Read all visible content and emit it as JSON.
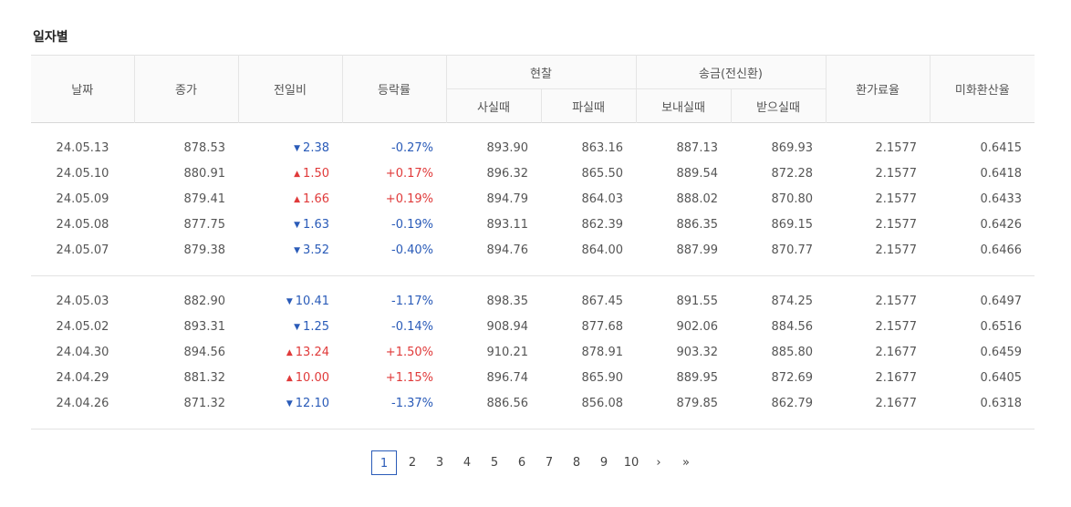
{
  "section_title": "일자별",
  "headers": {
    "date": "날짜",
    "close": "종가",
    "change": "전일비",
    "rate": "등락률",
    "cash": "현찰",
    "cash_buy": "사실때",
    "cash_sell": "파실때",
    "remit": "송금(전신환)",
    "remit_send": "보내실때",
    "remit_receive": "받으실때",
    "exchange_commission": "환가료율",
    "usd_conversion": "미화환산율"
  },
  "rows": [
    {
      "date": "24.05.13",
      "close": "878.53",
      "dir": "down",
      "arrow": "▼",
      "change": "2.38",
      "rate": "-0.27%",
      "cash_buy": "893.90",
      "cash_sell": "863.16",
      "send": "887.13",
      "receive": "869.93",
      "commission": "2.1577",
      "usd": "0.6415"
    },
    {
      "date": "24.05.10",
      "close": "880.91",
      "dir": "up",
      "arrow": "▲",
      "change": "1.50",
      "rate": "+0.17%",
      "cash_buy": "896.32",
      "cash_sell": "865.50",
      "send": "889.54",
      "receive": "872.28",
      "commission": "2.1577",
      "usd": "0.6418"
    },
    {
      "date": "24.05.09",
      "close": "879.41",
      "dir": "up",
      "arrow": "▲",
      "change": "1.66",
      "rate": "+0.19%",
      "cash_buy": "894.79",
      "cash_sell": "864.03",
      "send": "888.02",
      "receive": "870.80",
      "commission": "2.1577",
      "usd": "0.6433"
    },
    {
      "date": "24.05.08",
      "close": "877.75",
      "dir": "down",
      "arrow": "▼",
      "change": "1.63",
      "rate": "-0.19%",
      "cash_buy": "893.11",
      "cash_sell": "862.39",
      "send": "886.35",
      "receive": "869.15",
      "commission": "2.1577",
      "usd": "0.6426"
    },
    {
      "date": "24.05.07",
      "close": "879.38",
      "dir": "down",
      "arrow": "▼",
      "change": "3.52",
      "rate": "-0.40%",
      "cash_buy": "894.76",
      "cash_sell": "864.00",
      "send": "887.99",
      "receive": "870.77",
      "commission": "2.1577",
      "usd": "0.6466"
    },
    {
      "date": "24.05.03",
      "close": "882.90",
      "dir": "down",
      "arrow": "▼",
      "change": "10.41",
      "rate": "-1.17%",
      "cash_buy": "898.35",
      "cash_sell": "867.45",
      "send": "891.55",
      "receive": "874.25",
      "commission": "2.1577",
      "usd": "0.6497"
    },
    {
      "date": "24.05.02",
      "close": "893.31",
      "dir": "down",
      "arrow": "▼",
      "change": "1.25",
      "rate": "-0.14%",
      "cash_buy": "908.94",
      "cash_sell": "877.68",
      "send": "902.06",
      "receive": "884.56",
      "commission": "2.1577",
      "usd": "0.6516"
    },
    {
      "date": "24.04.30",
      "close": "894.56",
      "dir": "up",
      "arrow": "▲",
      "change": "13.24",
      "rate": "+1.50%",
      "cash_buy": "910.21",
      "cash_sell": "878.91",
      "send": "903.32",
      "receive": "885.80",
      "commission": "2.1677",
      "usd": "0.6459"
    },
    {
      "date": "24.04.29",
      "close": "881.32",
      "dir": "up",
      "arrow": "▲",
      "change": "10.00",
      "rate": "+1.15%",
      "cash_buy": "896.74",
      "cash_sell": "865.90",
      "send": "889.95",
      "receive": "872.69",
      "commission": "2.1677",
      "usd": "0.6405"
    },
    {
      "date": "24.04.26",
      "close": "871.32",
      "dir": "down",
      "arrow": "▼",
      "change": "12.10",
      "rate": "-1.37%",
      "cash_buy": "886.56",
      "cash_sell": "856.08",
      "send": "879.85",
      "receive": "862.79",
      "commission": "2.1677",
      "usd": "0.6318"
    }
  ],
  "pagination": {
    "pages": [
      "1",
      "2",
      "3",
      "4",
      "5",
      "6",
      "7",
      "8",
      "9",
      "10"
    ],
    "current": "1",
    "next": "›",
    "last": "»"
  },
  "colors": {
    "down": "#2a5bb8",
    "up": "#e03a3a",
    "active_page": "#2a5bb8"
  }
}
